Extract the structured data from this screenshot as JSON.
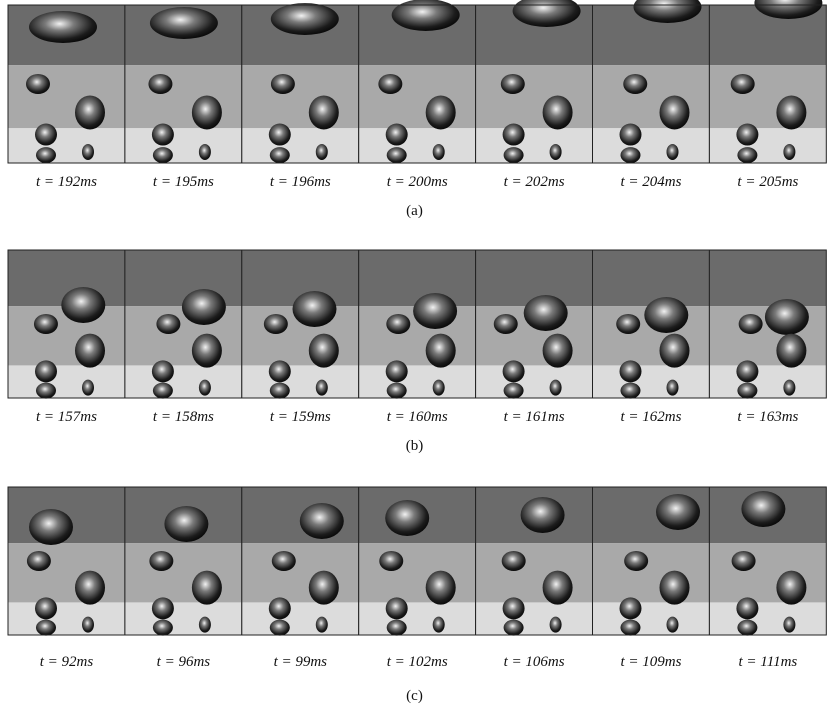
{
  "figures": [
    {
      "frames": [
        "t = 192ms",
        "t = 195ms",
        "t = 196ms",
        "t = 200ms",
        "t = 202ms",
        "t = 204ms",
        "t = 205ms"
      ],
      "label": "(a)"
    },
    {
      "frames": [
        "t = 157ms",
        "t = 158ms",
        "t = 159ms",
        "t = 160ms",
        "t = 161ms",
        "t = 162ms",
        "t = 163ms"
      ],
      "label": "(b)"
    },
    {
      "frames": [
        "t = 92ms",
        "t = 96ms",
        "t = 99ms",
        "t = 102ms",
        "t = 106ms",
        "t = 109ms",
        "t = 111ms"
      ],
      "label": "(c)"
    }
  ]
}
